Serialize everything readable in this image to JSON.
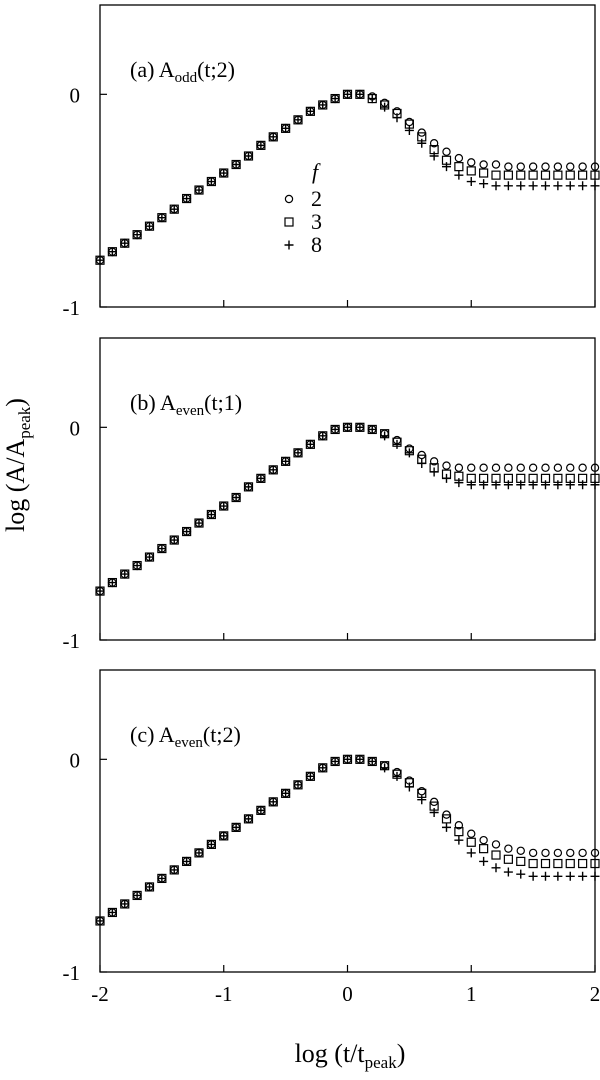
{
  "chart_data": [
    {
      "type": "scatter",
      "title_main": "(a) A",
      "title_sub": "odd",
      "title_tail": "(t;2)",
      "xlim": [
        -2,
        2
      ],
      "ylim": [
        -1,
        0.42
      ],
      "yticks": [
        "0",
        "-1"
      ],
      "legend": {
        "title": "f",
        "entries": [
          "2",
          "3",
          "8"
        ],
        "position": "center"
      },
      "series": [
        {
          "name": "2",
          "marker": "circle",
          "x": [
            -2.0,
            -1.9,
            -1.8,
            -1.7,
            -1.6,
            -1.5,
            -1.4,
            -1.3,
            -1.2,
            -1.1,
            -1.0,
            -0.9,
            -0.8,
            -0.7,
            -0.6,
            -0.5,
            -0.4,
            -0.3,
            -0.2,
            -0.1,
            0.0,
            0.1,
            0.2,
            0.3,
            0.4,
            0.5,
            0.6,
            0.7,
            0.8,
            0.9,
            1.0,
            1.1,
            1.2,
            1.3,
            1.4,
            1.5,
            1.6,
            1.7,
            1.8,
            1.9,
            2.0
          ],
          "y": [
            -0.78,
            -0.74,
            -0.7,
            -0.66,
            -0.62,
            -0.58,
            -0.54,
            -0.49,
            -0.45,
            -0.41,
            -0.37,
            -0.33,
            -0.29,
            -0.24,
            -0.2,
            -0.16,
            -0.12,
            -0.08,
            -0.05,
            -0.02,
            0.0,
            0.0,
            -0.01,
            -0.04,
            -0.08,
            -0.13,
            -0.18,
            -0.23,
            -0.27,
            -0.3,
            -0.32,
            -0.33,
            -0.33,
            -0.34,
            -0.34,
            -0.34,
            -0.34,
            -0.34,
            -0.34,
            -0.34,
            -0.34
          ]
        },
        {
          "name": "3",
          "marker": "square",
          "x": [
            -2.0,
            -1.9,
            -1.8,
            -1.7,
            -1.6,
            -1.5,
            -1.4,
            -1.3,
            -1.2,
            -1.1,
            -1.0,
            -0.9,
            -0.8,
            -0.7,
            -0.6,
            -0.5,
            -0.4,
            -0.3,
            -0.2,
            -0.1,
            0.0,
            0.1,
            0.2,
            0.3,
            0.4,
            0.5,
            0.6,
            0.7,
            0.8,
            0.9,
            1.0,
            1.1,
            1.2,
            1.3,
            1.4,
            1.5,
            1.6,
            1.7,
            1.8,
            1.9,
            2.0
          ],
          "y": [
            -0.78,
            -0.74,
            -0.7,
            -0.66,
            -0.62,
            -0.58,
            -0.54,
            -0.49,
            -0.45,
            -0.41,
            -0.37,
            -0.33,
            -0.29,
            -0.24,
            -0.2,
            -0.16,
            -0.12,
            -0.08,
            -0.05,
            -0.02,
            0.0,
            0.0,
            -0.02,
            -0.05,
            -0.09,
            -0.14,
            -0.2,
            -0.26,
            -0.31,
            -0.34,
            -0.36,
            -0.37,
            -0.38,
            -0.38,
            -0.38,
            -0.38,
            -0.38,
            -0.38,
            -0.38,
            -0.38,
            -0.38
          ]
        },
        {
          "name": "8",
          "marker": "plus",
          "x": [
            -2.0,
            -1.9,
            -1.8,
            -1.7,
            -1.6,
            -1.5,
            -1.4,
            -1.3,
            -1.2,
            -1.1,
            -1.0,
            -0.9,
            -0.8,
            -0.7,
            -0.6,
            -0.5,
            -0.4,
            -0.3,
            -0.2,
            -0.1,
            0.0,
            0.1,
            0.2,
            0.3,
            0.4,
            0.5,
            0.6,
            0.7,
            0.8,
            0.9,
            1.0,
            1.1,
            1.2,
            1.3,
            1.4,
            1.5,
            1.6,
            1.7,
            1.8,
            1.9,
            2.0
          ],
          "y": [
            -0.78,
            -0.74,
            -0.7,
            -0.66,
            -0.62,
            -0.58,
            -0.54,
            -0.49,
            -0.45,
            -0.41,
            -0.37,
            -0.33,
            -0.29,
            -0.24,
            -0.2,
            -0.16,
            -0.12,
            -0.08,
            -0.05,
            -0.02,
            0.0,
            0.0,
            -0.02,
            -0.06,
            -0.11,
            -0.17,
            -0.23,
            -0.29,
            -0.34,
            -0.38,
            -0.41,
            -0.42,
            -0.43,
            -0.43,
            -0.43,
            -0.43,
            -0.43,
            -0.43,
            -0.43,
            -0.43,
            -0.43
          ]
        }
      ]
    },
    {
      "type": "scatter",
      "title_main": "(b) A",
      "title_sub": "even",
      "title_tail": "(t;1)",
      "xlim": [
        -2,
        2
      ],
      "ylim": [
        -1,
        0.42
      ],
      "yticks": [
        "0",
        "-1"
      ],
      "series": [
        {
          "name": "2",
          "marker": "circle",
          "x": [
            -2.0,
            -1.9,
            -1.8,
            -1.7,
            -1.6,
            -1.5,
            -1.4,
            -1.3,
            -1.2,
            -1.1,
            -1.0,
            -0.9,
            -0.8,
            -0.7,
            -0.6,
            -0.5,
            -0.4,
            -0.3,
            -0.2,
            -0.1,
            0.0,
            0.1,
            0.2,
            0.3,
            0.4,
            0.5,
            0.6,
            0.7,
            0.8,
            0.9,
            1.0,
            1.1,
            1.2,
            1.3,
            1.4,
            1.5,
            1.6,
            1.7,
            1.8,
            1.9,
            2.0
          ],
          "y": [
            -0.77,
            -0.73,
            -0.69,
            -0.65,
            -0.61,
            -0.57,
            -0.53,
            -0.49,
            -0.45,
            -0.41,
            -0.37,
            -0.33,
            -0.28,
            -0.24,
            -0.2,
            -0.16,
            -0.12,
            -0.08,
            -0.04,
            -0.01,
            0.0,
            0.0,
            -0.01,
            -0.03,
            -0.06,
            -0.1,
            -0.13,
            -0.16,
            -0.18,
            -0.19,
            -0.19,
            -0.19,
            -0.19,
            -0.19,
            -0.19,
            -0.19,
            -0.19,
            -0.19,
            -0.19,
            -0.19,
            -0.19
          ]
        },
        {
          "name": "3",
          "marker": "square",
          "x": [
            -2.0,
            -1.9,
            -1.8,
            -1.7,
            -1.6,
            -1.5,
            -1.4,
            -1.3,
            -1.2,
            -1.1,
            -1.0,
            -0.9,
            -0.8,
            -0.7,
            -0.6,
            -0.5,
            -0.4,
            -0.3,
            -0.2,
            -0.1,
            0.0,
            0.1,
            0.2,
            0.3,
            0.4,
            0.5,
            0.6,
            0.7,
            0.8,
            0.9,
            1.0,
            1.1,
            1.2,
            1.3,
            1.4,
            1.5,
            1.6,
            1.7,
            1.8,
            1.9,
            2.0
          ],
          "y": [
            -0.77,
            -0.73,
            -0.69,
            -0.65,
            -0.61,
            -0.57,
            -0.53,
            -0.49,
            -0.45,
            -0.41,
            -0.37,
            -0.33,
            -0.28,
            -0.24,
            -0.2,
            -0.16,
            -0.12,
            -0.08,
            -0.04,
            -0.01,
            0.0,
            0.0,
            -0.01,
            -0.03,
            -0.07,
            -0.11,
            -0.15,
            -0.19,
            -0.22,
            -0.23,
            -0.24,
            -0.24,
            -0.24,
            -0.24,
            -0.24,
            -0.24,
            -0.24,
            -0.24,
            -0.24,
            -0.24,
            -0.24
          ]
        },
        {
          "name": "8",
          "marker": "plus",
          "x": [
            -2.0,
            -1.9,
            -1.8,
            -1.7,
            -1.6,
            -1.5,
            -1.4,
            -1.3,
            -1.2,
            -1.1,
            -1.0,
            -0.9,
            -0.8,
            -0.7,
            -0.6,
            -0.5,
            -0.4,
            -0.3,
            -0.2,
            -0.1,
            0.0,
            0.1,
            0.2,
            0.3,
            0.4,
            0.5,
            0.6,
            0.7,
            0.8,
            0.9,
            1.0,
            1.1,
            1.2,
            1.3,
            1.4,
            1.5,
            1.6,
            1.7,
            1.8,
            1.9,
            2.0
          ],
          "y": [
            -0.77,
            -0.73,
            -0.69,
            -0.65,
            -0.61,
            -0.57,
            -0.53,
            -0.49,
            -0.45,
            -0.41,
            -0.37,
            -0.33,
            -0.28,
            -0.24,
            -0.2,
            -0.16,
            -0.12,
            -0.08,
            -0.04,
            -0.01,
            0.0,
            0.0,
            -0.01,
            -0.04,
            -0.08,
            -0.12,
            -0.17,
            -0.21,
            -0.24,
            -0.26,
            -0.27,
            -0.27,
            -0.27,
            -0.27,
            -0.27,
            -0.27,
            -0.27,
            -0.27,
            -0.27,
            -0.27,
            -0.27
          ]
        }
      ]
    },
    {
      "type": "scatter",
      "title_main": "(c) A",
      "title_sub": "even",
      "title_tail": "(t;2)",
      "xlim": [
        -2,
        2
      ],
      "ylim": [
        -1,
        0.42
      ],
      "yticks": [
        "0",
        "-1"
      ],
      "xticks": [
        "-2",
        "-1",
        "0",
        "1",
        "2"
      ],
      "series": [
        {
          "name": "2",
          "marker": "circle",
          "x": [
            -2.0,
            -1.9,
            -1.8,
            -1.7,
            -1.6,
            -1.5,
            -1.4,
            -1.3,
            -1.2,
            -1.1,
            -1.0,
            -0.9,
            -0.8,
            -0.7,
            -0.6,
            -0.5,
            -0.4,
            -0.3,
            -0.2,
            -0.1,
            0.0,
            0.1,
            0.2,
            0.3,
            0.4,
            0.5,
            0.6,
            0.7,
            0.8,
            0.9,
            1.0,
            1.1,
            1.2,
            1.3,
            1.4,
            1.5,
            1.6,
            1.7,
            1.8,
            1.9,
            2.0
          ],
          "y": [
            -0.76,
            -0.72,
            -0.68,
            -0.64,
            -0.6,
            -0.56,
            -0.52,
            -0.48,
            -0.44,
            -0.4,
            -0.36,
            -0.32,
            -0.28,
            -0.24,
            -0.2,
            -0.16,
            -0.12,
            -0.08,
            -0.04,
            -0.01,
            0.0,
            0.0,
            -0.01,
            -0.03,
            -0.06,
            -0.1,
            -0.15,
            -0.2,
            -0.26,
            -0.31,
            -0.35,
            -0.38,
            -0.4,
            -0.42,
            -0.43,
            -0.44,
            -0.44,
            -0.44,
            -0.44,
            -0.44,
            -0.44
          ]
        },
        {
          "name": "3",
          "marker": "square",
          "x": [
            -2.0,
            -1.9,
            -1.8,
            -1.7,
            -1.6,
            -1.5,
            -1.4,
            -1.3,
            -1.2,
            -1.1,
            -1.0,
            -0.9,
            -0.8,
            -0.7,
            -0.6,
            -0.5,
            -0.4,
            -0.3,
            -0.2,
            -0.1,
            0.0,
            0.1,
            0.2,
            0.3,
            0.4,
            0.5,
            0.6,
            0.7,
            0.8,
            0.9,
            1.0,
            1.1,
            1.2,
            1.3,
            1.4,
            1.5,
            1.6,
            1.7,
            1.8,
            1.9,
            2.0
          ],
          "y": [
            -0.76,
            -0.72,
            -0.68,
            -0.64,
            -0.6,
            -0.56,
            -0.52,
            -0.48,
            -0.44,
            -0.4,
            -0.36,
            -0.32,
            -0.28,
            -0.24,
            -0.2,
            -0.16,
            -0.12,
            -0.08,
            -0.04,
            -0.01,
            0.0,
            0.0,
            -0.01,
            -0.03,
            -0.07,
            -0.11,
            -0.16,
            -0.22,
            -0.28,
            -0.34,
            -0.39,
            -0.42,
            -0.45,
            -0.47,
            -0.48,
            -0.49,
            -0.49,
            -0.49,
            -0.49,
            -0.49,
            -0.49
          ]
        },
        {
          "name": "8",
          "marker": "plus",
          "x": [
            -2.0,
            -1.9,
            -1.8,
            -1.7,
            -1.6,
            -1.5,
            -1.4,
            -1.3,
            -1.2,
            -1.1,
            -1.0,
            -0.9,
            -0.8,
            -0.7,
            -0.6,
            -0.5,
            -0.4,
            -0.3,
            -0.2,
            -0.1,
            0.0,
            0.1,
            0.2,
            0.3,
            0.4,
            0.5,
            0.6,
            0.7,
            0.8,
            0.9,
            1.0,
            1.1,
            1.2,
            1.3,
            1.4,
            1.5,
            1.6,
            1.7,
            1.8,
            1.9,
            2.0
          ],
          "y": [
            -0.76,
            -0.72,
            -0.68,
            -0.64,
            -0.6,
            -0.56,
            -0.52,
            -0.48,
            -0.44,
            -0.4,
            -0.36,
            -0.32,
            -0.28,
            -0.24,
            -0.2,
            -0.16,
            -0.12,
            -0.08,
            -0.04,
            -0.01,
            0.0,
            0.0,
            -0.01,
            -0.04,
            -0.08,
            -0.13,
            -0.19,
            -0.25,
            -0.32,
            -0.38,
            -0.44,
            -0.48,
            -0.51,
            -0.53,
            -0.54,
            -0.55,
            -0.55,
            -0.55,
            -0.55,
            -0.55,
            -0.55
          ]
        }
      ]
    }
  ],
  "axes": {
    "ylabel_main": "log (A/A",
    "ylabel_sub": "peak",
    "ylabel_tail": ")",
    "xlabel_main": "log (t/t",
    "xlabel_sub": "peak",
    "xlabel_tail": ")"
  }
}
